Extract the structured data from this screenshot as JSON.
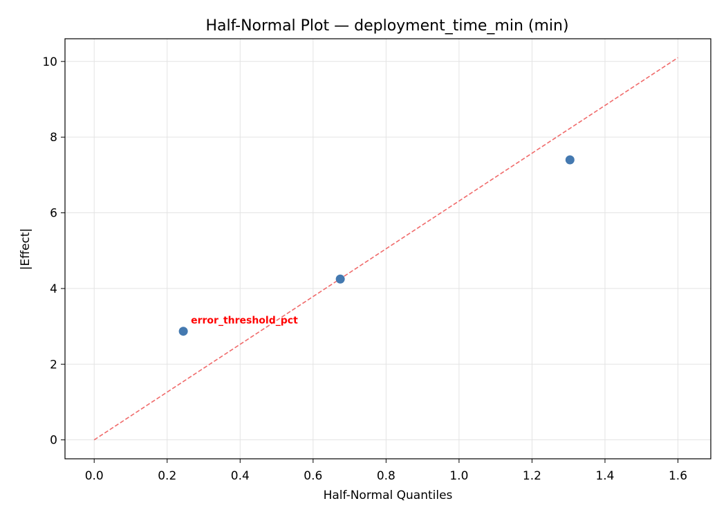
{
  "chart_data": {
    "type": "scatter",
    "title": "Half-Normal Plot — deployment_time_min (min)",
    "xlabel": "Half-Normal Quantiles",
    "ylabel": "|Effect|",
    "xlim": [
      -0.08,
      1.69
    ],
    "ylim": [
      -0.5,
      10.6
    ],
    "xticks": [
      0.0,
      0.2,
      0.4,
      0.6,
      0.8,
      1.0,
      1.2,
      1.4,
      1.6
    ],
    "xtick_labels": [
      "0.0",
      "0.2",
      "0.4",
      "0.6",
      "0.8",
      "1.0",
      "1.2",
      "1.4",
      "1.6"
    ],
    "yticks": [
      0,
      2,
      4,
      6,
      8,
      10
    ],
    "ytick_labels": [
      "0",
      "2",
      "4",
      "6",
      "8",
      "10"
    ],
    "grid": true,
    "points": [
      {
        "x": 0.2443,
        "y": 2.87
      },
      {
        "x": 0.6745,
        "y": 4.25
      },
      {
        "x": 1.304,
        "y": 7.4
      }
    ],
    "reference_line": {
      "x": [
        0.0,
        1.6
      ],
      "y": [
        0.0,
        10.1
      ],
      "style": "dashed",
      "color": "#f06a6a"
    },
    "annotations": [
      {
        "text": "error_threshold_pct",
        "x": 0.2443,
        "y": 2.87,
        "color": "#ff0000"
      }
    ],
    "point_color": "#4479b0",
    "grid_color": "#e3e3e3"
  }
}
